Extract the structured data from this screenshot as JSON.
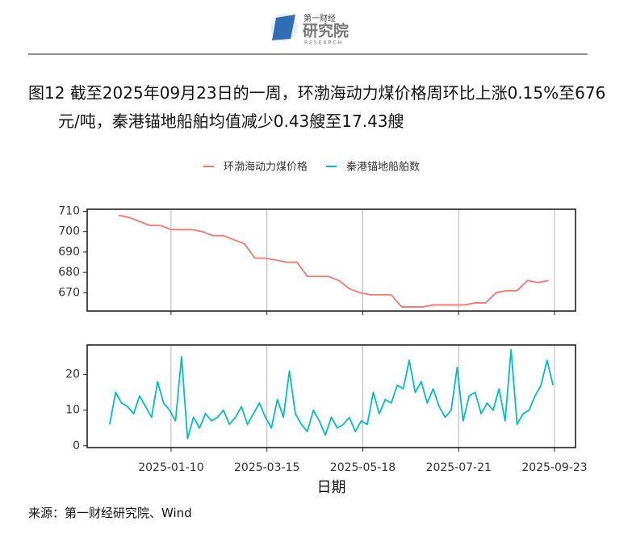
{
  "header": {
    "logo_top": "第一财经",
    "logo_main": "研究院",
    "logo_sub": "RESEARCH"
  },
  "title": "图12  截至2025年09月23日的一周，环渤海动力煤价格周环比上涨0.15%至676元/吨，秦港锚地船舶均值减少0.43艘至17.43艘",
  "source": "来源：第一财经研究院、Wind",
  "chart_data": [
    {
      "type": "line",
      "grid": "x",
      "x": [
        "2024-12-06",
        "2024-12-13",
        "2024-12-20",
        "2024-12-27",
        "2025-01-03",
        "2025-01-10",
        "2025-01-17",
        "2025-01-24",
        "2025-01-31",
        "2025-02-07",
        "2025-02-14",
        "2025-02-21",
        "2025-02-28",
        "2025-03-07",
        "2025-03-14",
        "2025-03-21",
        "2025-03-28",
        "2025-04-04",
        "2025-04-11",
        "2025-04-18",
        "2025-04-25",
        "2025-05-02",
        "2025-05-09",
        "2025-05-16",
        "2025-05-23",
        "2025-05-30",
        "2025-06-06",
        "2025-06-13",
        "2025-06-20",
        "2025-06-27",
        "2025-07-04",
        "2025-07-11",
        "2025-07-18",
        "2025-07-25",
        "2025-08-01",
        "2025-08-08",
        "2025-08-15",
        "2025-08-22",
        "2025-08-29",
        "2025-09-05",
        "2025-09-12",
        "2025-09-19"
      ],
      "series": [
        {
          "name": "环渤海动力煤价格",
          "color": "#f8766d",
          "values": [
            708,
            707,
            705,
            703,
            703,
            701,
            701,
            701,
            700,
            698,
            698,
            696,
            694,
            687,
            687,
            686,
            685,
            685,
            678,
            678,
            678,
            676,
            672,
            670,
            669,
            669,
            669,
            663,
            663,
            663,
            664,
            664,
            664,
            664,
            665,
            665,
            670,
            671,
            671,
            676,
            675,
            676
          ]
        }
      ],
      "xlim": [
        "2024-11-15",
        "2025-10-07"
      ],
      "xticks": [
        "2025-01-10",
        "2025-03-15",
        "2025-05-18",
        "2025-07-21",
        "2025-09-23"
      ],
      "ylim": [
        661,
        711
      ],
      "yticks": [
        670,
        680,
        690,
        700,
        710
      ]
    },
    {
      "type": "line",
      "grid": "x",
      "x_label": "日期",
      "x": [
        "2024-11-30",
        "2024-12-04",
        "2024-12-08",
        "2024-12-12",
        "2024-12-16",
        "2024-12-20",
        "2024-12-24",
        "2024-12-28",
        "2025-01-01",
        "2025-01-05",
        "2025-01-09",
        "2025-01-13",
        "2025-01-17",
        "2025-01-21",
        "2025-01-25",
        "2025-01-29",
        "2025-02-02",
        "2025-02-06",
        "2025-02-10",
        "2025-02-14",
        "2025-02-18",
        "2025-02-22",
        "2025-02-26",
        "2025-03-02",
        "2025-03-06",
        "2025-03-10",
        "2025-03-14",
        "2025-03-18",
        "2025-03-22",
        "2025-03-26",
        "2025-03-30",
        "2025-04-03",
        "2025-04-07",
        "2025-04-11",
        "2025-04-15",
        "2025-04-19",
        "2025-04-23",
        "2025-04-27",
        "2025-05-01",
        "2025-05-05",
        "2025-05-09",
        "2025-05-13",
        "2025-05-17",
        "2025-05-21",
        "2025-05-25",
        "2025-05-29",
        "2025-06-02",
        "2025-06-06",
        "2025-06-10",
        "2025-06-14",
        "2025-06-18",
        "2025-06-22",
        "2025-06-26",
        "2025-06-30",
        "2025-07-04",
        "2025-07-08",
        "2025-07-12",
        "2025-07-16",
        "2025-07-20",
        "2025-07-24",
        "2025-07-28",
        "2025-08-01",
        "2025-08-05",
        "2025-08-09",
        "2025-08-13",
        "2025-08-17",
        "2025-08-21",
        "2025-08-25",
        "2025-08-29",
        "2025-09-02",
        "2025-09-06",
        "2025-09-10",
        "2025-09-14",
        "2025-09-18",
        "2025-09-22"
      ],
      "series": [
        {
          "name": "秦港锚地船舶数",
          "color": "#00bfc4",
          "values": [
            6,
            15,
            12,
            11,
            9,
            14,
            11,
            8,
            18,
            12,
            10,
            7,
            25,
            2,
            8,
            5,
            9,
            7,
            8,
            10,
            6,
            8,
            11,
            6,
            9,
            12,
            8,
            5,
            13,
            8,
            21,
            9,
            6,
            4,
            10,
            7,
            3,
            8,
            5,
            6,
            8,
            4,
            7,
            6,
            15,
            9,
            13,
            12,
            17,
            16,
            24,
            15,
            18,
            12,
            16,
            11,
            8,
            10,
            22,
            7,
            14,
            15,
            9,
            12,
            10,
            16,
            7,
            27,
            6,
            9,
            10,
            14,
            17,
            24,
            17
          ]
        }
      ],
      "xlim": [
        "2024-11-15",
        "2025-10-07"
      ],
      "xticks": [
        "2025-01-10",
        "2025-03-15",
        "2025-05-18",
        "2025-07-21",
        "2025-09-23"
      ],
      "ylim": [
        -0.5,
        28.3
      ],
      "yticks": [
        0,
        10,
        20
      ]
    }
  ]
}
